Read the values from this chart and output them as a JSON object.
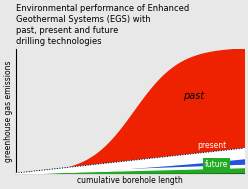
{
  "title": "Environmental performance of Enhanced\nGeothermal Systems (EGS) with\npast, present and future\ndrilling technologies",
  "xlabel": "cumulative borehole length",
  "ylabel": "greenhouse gas emissions",
  "title_fontsize": 6.0,
  "label_fontsize": 5.5,
  "bg_color": "#e8e8e8",
  "past_color": "#ee2200",
  "present_color": "#2255dd",
  "future_color": "#22aa22",
  "past_label": "past",
  "present_label": "present",
  "future_label": "future"
}
